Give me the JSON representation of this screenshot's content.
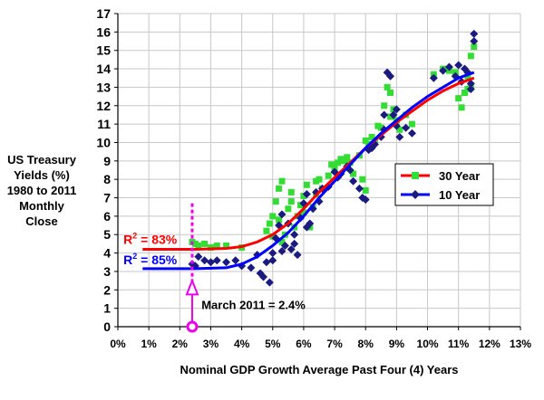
{
  "chart_data": {
    "type": "scatter",
    "ylabel_lines": [
      "US Treasury",
      "Yields (%)",
      "1980 to 2011",
      "Monthly",
      "Close"
    ],
    "xlabel": "Nominal GDP Growth Average Past Four (4) Years",
    "xlim": [
      0,
      13
    ],
    "ylim": [
      0,
      17
    ],
    "x_ticks": [
      0,
      1,
      2,
      3,
      4,
      5,
      6,
      7,
      8,
      9,
      10,
      11,
      12,
      13
    ],
    "x_tick_labels": [
      "0%",
      "1%",
      "2%",
      "3%",
      "4%",
      "5%",
      "6%",
      "7%",
      "8%",
      "9%",
      "10%",
      "11%",
      "12%",
      "13%"
    ],
    "y_ticks": [
      0,
      1,
      2,
      3,
      4,
      5,
      6,
      7,
      8,
      9,
      10,
      11,
      12,
      13,
      14,
      15,
      16,
      17
    ],
    "y_tick_labels": [
      "0",
      "1",
      "2",
      "3",
      "4",
      "5",
      "6",
      "7",
      "8",
      "9",
      "10",
      "11",
      "12",
      "13",
      "14",
      "15",
      "16",
      "17"
    ],
    "grid": true,
    "legend_position": "right",
    "series": [
      {
        "name": "30 Year",
        "color": "#33dd33",
        "marker": "square",
        "points": [
          [
            2.4,
            4.6
          ],
          [
            2.5,
            4.5
          ],
          [
            2.6,
            4.4
          ],
          [
            2.8,
            4.5
          ],
          [
            3.0,
            4.3
          ],
          [
            3.2,
            4.4
          ],
          [
            3.5,
            4.4
          ],
          [
            4.0,
            4.3
          ],
          [
            4.8,
            5.2
          ],
          [
            4.9,
            5.6
          ],
          [
            5.0,
            6.0
          ],
          [
            5.1,
            6.8
          ],
          [
            5.2,
            7.5
          ],
          [
            5.3,
            7.9
          ],
          [
            5.3,
            4.6
          ],
          [
            5.4,
            5.0
          ],
          [
            5.5,
            6.4
          ],
          [
            5.6,
            7.3
          ],
          [
            5.7,
            5.4
          ],
          [
            5.8,
            6.0
          ],
          [
            5.9,
            6.6
          ],
          [
            6.0,
            7.1
          ],
          [
            6.1,
            7.7
          ],
          [
            6.2,
            5.4
          ],
          [
            6.3,
            6.5
          ],
          [
            6.4,
            7.9
          ],
          [
            6.5,
            8.0
          ],
          [
            6.6,
            7.5
          ],
          [
            6.8,
            8.2
          ],
          [
            6.9,
            8.8
          ],
          [
            7.0,
            8.6
          ],
          [
            7.1,
            8.9
          ],
          [
            7.2,
            9.1
          ],
          [
            7.3,
            9.0
          ],
          [
            7.5,
            8.9
          ],
          [
            7.6,
            8.3
          ],
          [
            7.8,
            9.3
          ],
          [
            7.9,
            8.0
          ],
          [
            8.0,
            7.4
          ],
          [
            8.1,
            9.9
          ],
          [
            8.2,
            10.3
          ],
          [
            8.3,
            10.1
          ],
          [
            8.5,
            10.8
          ],
          [
            8.6,
            12.0
          ],
          [
            8.7,
            13.0
          ],
          [
            8.8,
            12.7
          ],
          [
            8.9,
            11.8
          ],
          [
            9.0,
            11.2
          ],
          [
            9.1,
            10.7
          ],
          [
            9.3,
            11.5
          ],
          [
            9.5,
            11.0
          ],
          [
            10.2,
            13.7
          ],
          [
            10.5,
            14.0
          ],
          [
            10.7,
            13.9
          ],
          [
            10.9,
            13.8
          ],
          [
            11.0,
            12.4
          ],
          [
            11.1,
            11.9
          ],
          [
            11.2,
            12.7
          ],
          [
            11.3,
            13.6
          ],
          [
            11.4,
            14.7
          ],
          [
            11.5,
            15.2
          ],
          [
            11.3,
            12.9
          ],
          [
            11.4,
            13.1
          ],
          [
            5.0,
            4.9
          ],
          [
            5.2,
            5.8
          ],
          [
            5.6,
            6.8
          ],
          [
            6.0,
            6.2
          ],
          [
            6.4,
            7.2
          ],
          [
            7.4,
            9.2
          ],
          [
            8.0,
            10.1
          ],
          [
            8.4,
            10.9
          ],
          [
            8.8,
            11.4
          ]
        ]
      },
      {
        "name": "10 Year",
        "color": "#1a1a80",
        "marker": "diamond",
        "points": [
          [
            2.4,
            3.4
          ],
          [
            2.5,
            3.3
          ],
          [
            2.6,
            3.8
          ],
          [
            2.8,
            3.6
          ],
          [
            3.0,
            3.5
          ],
          [
            3.2,
            3.6
          ],
          [
            3.5,
            3.5
          ],
          [
            3.8,
            3.6
          ],
          [
            4.0,
            3.3
          ],
          [
            4.3,
            3.2
          ],
          [
            4.5,
            3.9
          ],
          [
            4.6,
            2.9
          ],
          [
            4.7,
            2.7
          ],
          [
            4.8,
            3.5
          ],
          [
            4.9,
            2.4
          ],
          [
            5.0,
            4.0
          ],
          [
            5.1,
            4.8
          ],
          [
            5.2,
            5.5
          ],
          [
            5.3,
            6.1
          ],
          [
            5.4,
            4.4
          ],
          [
            5.5,
            5.6
          ],
          [
            5.6,
            4.2
          ],
          [
            5.7,
            5.0
          ],
          [
            5.8,
            3.9
          ],
          [
            5.9,
            5.9
          ],
          [
            6.0,
            6.7
          ],
          [
            6.1,
            7.2
          ],
          [
            6.2,
            5.6
          ],
          [
            6.3,
            6.4
          ],
          [
            6.4,
            7.3
          ],
          [
            6.6,
            7.5
          ],
          [
            6.8,
            7.6
          ],
          [
            7.0,
            8.4
          ],
          [
            7.2,
            8.3
          ],
          [
            7.4,
            8.7
          ],
          [
            7.6,
            7.9
          ],
          [
            7.8,
            7.5
          ],
          [
            7.9,
            7.0
          ],
          [
            8.0,
            6.9
          ],
          [
            8.1,
            9.6
          ],
          [
            8.3,
            9.9
          ],
          [
            8.5,
            10.3
          ],
          [
            8.6,
            11.5
          ],
          [
            8.7,
            13.8
          ],
          [
            8.8,
            13.6
          ],
          [
            8.9,
            11.5
          ],
          [
            9.0,
            10.9
          ],
          [
            9.1,
            10.3
          ],
          [
            9.3,
            10.8
          ],
          [
            9.5,
            10.5
          ],
          [
            10.2,
            13.5
          ],
          [
            10.5,
            13.9
          ],
          [
            10.7,
            14.1
          ],
          [
            10.9,
            13.6
          ],
          [
            11.0,
            14.2
          ],
          [
            11.1,
            13.3
          ],
          [
            11.2,
            14.0
          ],
          [
            11.3,
            13.8
          ],
          [
            11.4,
            13.2
          ],
          [
            11.5,
            15.9
          ],
          [
            11.5,
            15.5
          ],
          [
            11.4,
            12.9
          ],
          [
            5.0,
            3.6
          ],
          [
            5.3,
            4.1
          ],
          [
            5.7,
            4.5
          ],
          [
            6.1,
            5.4
          ],
          [
            6.5,
            6.8
          ],
          [
            7.1,
            8.1
          ],
          [
            7.5,
            8.5
          ],
          [
            8.2,
            9.7
          ],
          [
            8.6,
            10.7
          ],
          [
            9.0,
            11.8
          ]
        ]
      }
    ],
    "trendlines": [
      {
        "series": "30 Year",
        "color": "#ff0000",
        "points": [
          [
            0.8,
            4.2
          ],
          [
            2.5,
            4.2
          ],
          [
            3.5,
            4.25
          ],
          [
            4.0,
            4.35
          ],
          [
            4.5,
            4.6
          ],
          [
            5.0,
            5.0
          ],
          [
            5.5,
            5.6
          ],
          [
            6.0,
            6.4
          ],
          [
            6.5,
            7.3
          ],
          [
            7.0,
            8.1
          ],
          [
            7.5,
            8.9
          ],
          [
            8.0,
            9.7
          ],
          [
            8.5,
            10.4
          ],
          [
            9.0,
            11.1
          ],
          [
            9.5,
            11.7
          ],
          [
            10.0,
            12.3
          ],
          [
            10.5,
            12.8
          ],
          [
            11.0,
            13.2
          ],
          [
            11.5,
            13.5
          ]
        ]
      },
      {
        "series": "10 Year",
        "color": "#0000ff",
        "points": [
          [
            0.8,
            3.15
          ],
          [
            2.5,
            3.15
          ],
          [
            3.5,
            3.2
          ],
          [
            4.0,
            3.4
          ],
          [
            4.5,
            3.8
          ],
          [
            5.0,
            4.4
          ],
          [
            5.5,
            5.1
          ],
          [
            6.0,
            6.0
          ],
          [
            6.5,
            7.0
          ],
          [
            7.0,
            7.9
          ],
          [
            7.5,
            8.8
          ],
          [
            8.0,
            9.7
          ],
          [
            8.5,
            10.5
          ],
          [
            9.0,
            11.2
          ],
          [
            9.5,
            11.9
          ],
          [
            10.0,
            12.5
          ],
          [
            10.5,
            13.0
          ],
          [
            11.0,
            13.5
          ],
          [
            11.5,
            13.8
          ]
        ]
      }
    ],
    "annotations": {
      "r2_30_prefix": "R",
      "r2_30_sup": "2",
      "r2_30_value": " = 83%",
      "r2_10_prefix": "R",
      "r2_10_sup": "2",
      "r2_10_value": " = 85%",
      "march_2011": "March 2011 = 2.4%",
      "march_2011_x": 2.4,
      "marker_color": "#ee00ee"
    }
  }
}
